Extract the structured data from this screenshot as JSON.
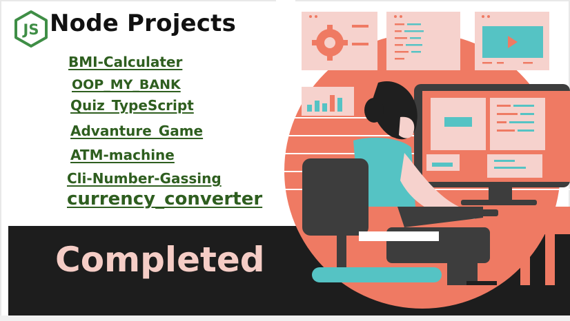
{
  "header": {
    "logo_text": "JS",
    "title": "Node Projects"
  },
  "projects": [
    {
      "label": "BMI-Calculater"
    },
    {
      "label": "OOP_MY_BANK"
    },
    {
      "label": "Quiz_TypeScript"
    },
    {
      "label": "Advanture_Game"
    },
    {
      "label": "ATM-machine"
    },
    {
      "label": "Cli-Number-Gassing"
    },
    {
      "label": "currency_converter"
    }
  ],
  "footer": {
    "status": "Completed"
  },
  "colors": {
    "project_link": "#2e5e1f",
    "logo_green": "#3f8e46",
    "status_text": "#f5cdc6",
    "band": "#1d1d1d",
    "accent_coral": "#ef7a63",
    "accent_teal": "#55c3c4"
  },
  "illustration": {
    "icons": [
      "gear-icon",
      "code-lines-icon",
      "play-video-icon",
      "bar-chart-icon"
    ]
  }
}
